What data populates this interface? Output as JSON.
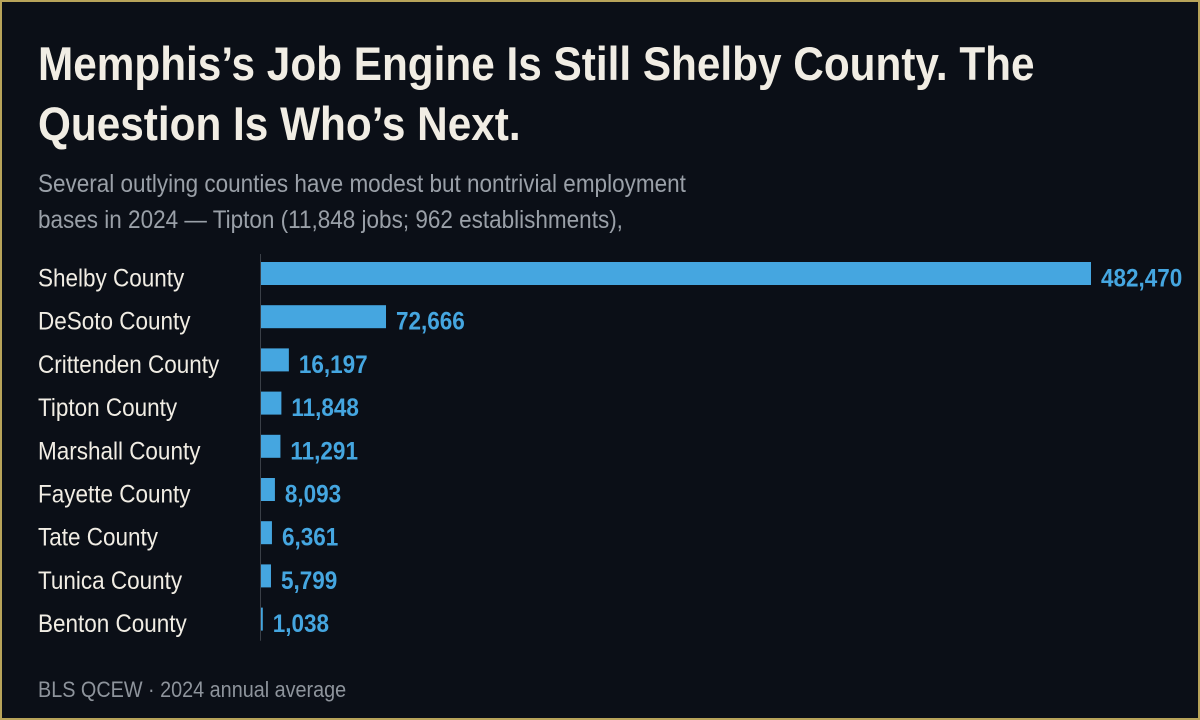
{
  "header": {
    "title": "Memphis’s Job Engine Is Still Shelby County. The Question Is Who’s Next.",
    "subtitle": "Several outlying counties have modest but nontrivial employment bases in 2024 — Tipton (11,848 jobs; 962 establishments),"
  },
  "footer": {
    "source": "BLS QCEW · 2024 annual average"
  },
  "colors": {
    "bar": "#45a6e0",
    "value_label": "#45a6e0",
    "category_label": "#f1ede4",
    "axis": "#3a3f47",
    "background": "#0b0f17",
    "border": "#b8a45a"
  },
  "chart_data": {
    "type": "bar",
    "orientation": "horizontal",
    "categories": [
      "Shelby County",
      "DeSoto County",
      "Crittenden County",
      "Tipton County",
      "Marshall County",
      "Fayette County",
      "Tate County",
      "Tunica County",
      "Benton County"
    ],
    "values": [
      482470,
      72666,
      16197,
      11848,
      11291,
      8093,
      6361,
      5799,
      1038
    ],
    "value_labels": [
      "482,470",
      "72,666",
      "16,197",
      "11,848",
      "11,291",
      "8,093",
      "6,361",
      "5,799",
      "1,038"
    ],
    "xlim": [
      0,
      482470
    ],
    "grid": false,
    "legend": "none"
  }
}
